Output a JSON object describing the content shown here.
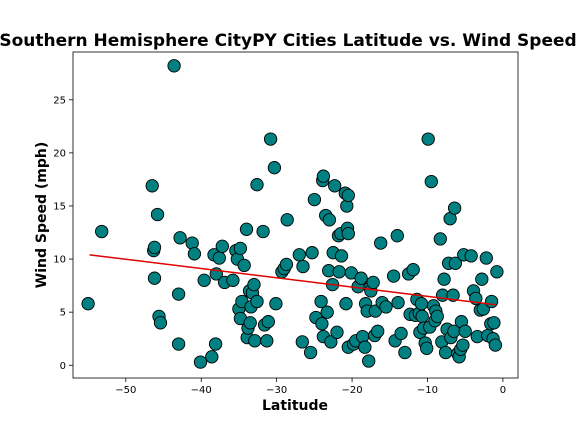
{
  "chart_data": {
    "type": "scatter",
    "title": "Southern Hemisphere CityPY Cities Latitude vs. Wind Speed",
    "xlabel": "Latitude",
    "ylabel": "Wind Speed (mph)",
    "xlim": [
      -57,
      2
    ],
    "ylim": [
      -1.2,
      29.5
    ],
    "xticks": [
      -50,
      -40,
      -30,
      -20,
      -10,
      0
    ],
    "xtick_labels": [
      "−50",
      "−40",
      "−30",
      "−20",
      "−10",
      "0"
    ],
    "yticks": [
      0,
      5,
      10,
      15,
      20,
      25
    ],
    "ytick_labels": [
      "0",
      "5",
      "10",
      "15",
      "20",
      "25"
    ],
    "grid": false,
    "marker_color": "#008080",
    "marker_edge": "#000000",
    "line_color": "#e00000",
    "regression": {
      "x": [
        -54.8,
        -1.0
      ],
      "y": [
        10.4,
        5.7
      ]
    },
    "points": [
      [
        -55.0,
        5.8
      ],
      [
        -53.2,
        12.6
      ],
      [
        -46.5,
        16.9
      ],
      [
        -46.3,
        10.8
      ],
      [
        -46.2,
        11.1
      ],
      [
        -46.2,
        8.2
      ],
      [
        -45.8,
        14.2
      ],
      [
        -45.6,
        4.6
      ],
      [
        -45.4,
        4.0
      ],
      [
        -43.6,
        28.2
      ],
      [
        -43.0,
        6.7
      ],
      [
        -43.0,
        2.0
      ],
      [
        -42.8,
        12.0
      ],
      [
        -41.2,
        11.5
      ],
      [
        -40.9,
        10.5
      ],
      [
        -40.1,
        0.3
      ],
      [
        -39.6,
        8.0
      ],
      [
        -38.6,
        0.8
      ],
      [
        -38.3,
        10.4
      ],
      [
        -38.1,
        2.0
      ],
      [
        -38.0,
        8.6
      ],
      [
        -37.6,
        10.1
      ],
      [
        -37.2,
        11.2
      ],
      [
        -36.9,
        7.8
      ],
      [
        -35.8,
        8.0
      ],
      [
        -35.4,
        10.8
      ],
      [
        -35.0,
        5.3
      ],
      [
        -35.2,
        10.0
      ],
      [
        -34.8,
        4.4
      ],
      [
        -34.6,
        6.0
      ],
      [
        -34.8,
        11.0
      ],
      [
        -34.3,
        9.4
      ],
      [
        -34.0,
        12.8
      ],
      [
        -33.9,
        2.6
      ],
      [
        -33.8,
        3.5
      ],
      [
        -33.6,
        7.0
      ],
      [
        -33.5,
        4.0
      ],
      [
        -33.4,
        5.5
      ],
      [
        -33.2,
        6.8
      ],
      [
        -33.0,
        7.6
      ],
      [
        -32.9,
        2.3
      ],
      [
        -32.6,
        17.0
      ],
      [
        -32.6,
        6.0
      ],
      [
        -31.8,
        12.6
      ],
      [
        -31.6,
        3.8
      ],
      [
        -31.3,
        2.3
      ],
      [
        -31.1,
        4.1
      ],
      [
        -30.8,
        21.3
      ],
      [
        -30.3,
        18.6
      ],
      [
        -30.1,
        5.8
      ],
      [
        -29.3,
        8.8
      ],
      [
        -29.0,
        9.1
      ],
      [
        -28.7,
        9.5
      ],
      [
        -28.6,
        13.7
      ],
      [
        -27.0,
        10.4
      ],
      [
        -26.6,
        2.2
      ],
      [
        -26.5,
        9.3
      ],
      [
        -25.5,
        1.2
      ],
      [
        -25.3,
        10.6
      ],
      [
        -25.0,
        15.6
      ],
      [
        -24.8,
        4.5
      ],
      [
        -24.1,
        6.0
      ],
      [
        -24.0,
        3.9
      ],
      [
        -23.9,
        17.4
      ],
      [
        -23.8,
        17.8
      ],
      [
        -23.8,
        2.7
      ],
      [
        -23.5,
        14.1
      ],
      [
        -23.3,
        5.0
      ],
      [
        -23.1,
        8.9
      ],
      [
        -23.0,
        13.7
      ],
      [
        -22.8,
        2.2
      ],
      [
        -22.6,
        7.6
      ],
      [
        -22.5,
        10.6
      ],
      [
        -22.3,
        16.9
      ],
      [
        -22.0,
        3.1
      ],
      [
        -21.8,
        12.2
      ],
      [
        -21.7,
        8.8
      ],
      [
        -21.5,
        12.4
      ],
      [
        -21.4,
        10.3
      ],
      [
        -20.9,
        16.2
      ],
      [
        -20.8,
        5.8
      ],
      [
        -20.7,
        15.0
      ],
      [
        -20.6,
        12.9
      ],
      [
        -20.5,
        12.4
      ],
      [
        -20.5,
        16.0
      ],
      [
        -20.5,
        1.7
      ],
      [
        -20.1,
        8.7
      ],
      [
        -19.8,
        2.0
      ],
      [
        -19.5,
        2.3
      ],
      [
        -19.2,
        7.4
      ],
      [
        -18.8,
        8.2
      ],
      [
        -18.6,
        2.7
      ],
      [
        -18.3,
        1.7
      ],
      [
        -18.2,
        5.8
      ],
      [
        -18.0,
        5.1
      ],
      [
        -17.8,
        0.4
      ],
      [
        -17.6,
        7.3
      ],
      [
        -17.5,
        7.0
      ],
      [
        -17.2,
        7.8
      ],
      [
        -17.0,
        2.8
      ],
      [
        -16.9,
        5.1
      ],
      [
        -16.6,
        3.2
      ],
      [
        -16.2,
        11.5
      ],
      [
        -16.0,
        5.9
      ],
      [
        -15.5,
        5.5
      ],
      [
        -14.5,
        8.4
      ],
      [
        -14.3,
        2.3
      ],
      [
        -14.0,
        12.2
      ],
      [
        -13.9,
        5.9
      ],
      [
        -13.5,
        3.0
      ],
      [
        -13.0,
        1.2
      ],
      [
        -12.5,
        8.6
      ],
      [
        -12.3,
        4.8
      ],
      [
        -11.9,
        9.0
      ],
      [
        -11.6,
        4.7
      ],
      [
        -11.4,
        6.2
      ],
      [
        -11.1,
        4.9
      ],
      [
        -11.0,
        3.1
      ],
      [
        -10.8,
        5.8
      ],
      [
        -10.7,
        4.6
      ],
      [
        -10.5,
        3.5
      ],
      [
        -10.3,
        2.1
      ],
      [
        -10.1,
        1.6
      ],
      [
        -9.9,
        21.3
      ],
      [
        -9.7,
        3.6
      ],
      [
        -9.5,
        17.3
      ],
      [
        -9.2,
        5.6
      ],
      [
        -9.0,
        4.2
      ],
      [
        -8.9,
        5.1
      ],
      [
        -8.7,
        4.6
      ],
      [
        -8.3,
        11.9
      ],
      [
        -8.1,
        2.2
      ],
      [
        -8.0,
        6.6
      ],
      [
        -7.8,
        8.1
      ],
      [
        -7.6,
        1.2
      ],
      [
        -7.4,
        3.4
      ],
      [
        -7.2,
        9.6
      ],
      [
        -7.0,
        13.8
      ],
      [
        -6.9,
        2.6
      ],
      [
        -6.6,
        6.6
      ],
      [
        -6.5,
        3.2
      ],
      [
        -6.4,
        14.8
      ],
      [
        -6.3,
        9.6
      ],
      [
        -6.0,
        1.1
      ],
      [
        -5.8,
        0.8
      ],
      [
        -5.6,
        1.5
      ],
      [
        -5.5,
        4.1
      ],
      [
        -5.3,
        1.9
      ],
      [
        -5.2,
        10.4
      ],
      [
        -5.0,
        3.2
      ],
      [
        -4.2,
        10.3
      ],
      [
        -3.9,
        7.0
      ],
      [
        -3.6,
        6.3
      ],
      [
        -3.4,
        2.7
      ],
      [
        -3.0,
        5.2
      ],
      [
        -2.8,
        8.1
      ],
      [
        -2.6,
        5.3
      ],
      [
        -2.2,
        10.1
      ],
      [
        -2.0,
        2.8
      ],
      [
        -1.6,
        3.9
      ],
      [
        -1.5,
        6.0
      ],
      [
        -1.3,
        2.5
      ],
      [
        -1.2,
        4.0
      ],
      [
        -1.0,
        1.9
      ],
      [
        -0.8,
        8.8
      ]
    ]
  }
}
